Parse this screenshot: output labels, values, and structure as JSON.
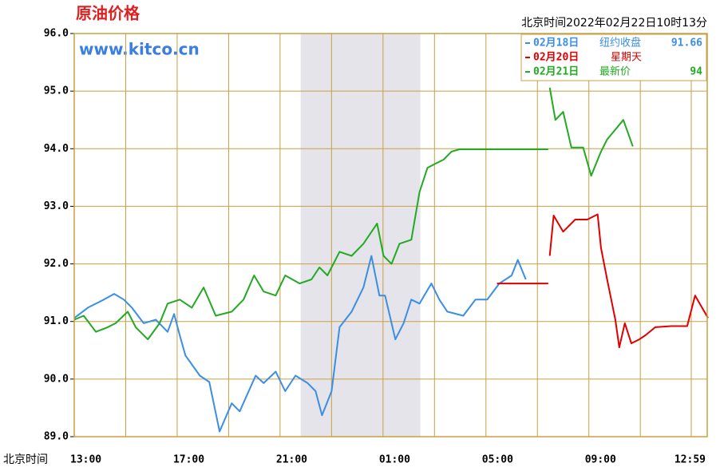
{
  "chart_data": {
    "type": "line",
    "title": "原油价格",
    "watermark": "www.kitco.cn",
    "timestamp": "北京时间2022年02月22日10时13分",
    "xlabel": "北京时间",
    "xlim": [
      0,
      24.6
    ],
    "ylim": [
      89,
      96
    ],
    "xticks": [
      {
        "value": 0,
        "label": "13:00"
      },
      {
        "value": 4,
        "label": "17:00"
      },
      {
        "value": 8,
        "label": "21:00"
      },
      {
        "value": 12,
        "label": "01:00"
      },
      {
        "value": 16,
        "label": "05:00"
      },
      {
        "value": 20,
        "label": "09:00"
      },
      {
        "value": 23.98,
        "label": "12:59"
      }
    ],
    "xminor": [
      2,
      6,
      10,
      14,
      18,
      22
    ],
    "yticks": [
      {
        "value": 89,
        "label": "89.0"
      },
      {
        "value": 90,
        "label": "90.0"
      },
      {
        "value": 91,
        "label": "91.0"
      },
      {
        "value": 92,
        "label": "92.0"
      },
      {
        "value": 93,
        "label": "93.0"
      },
      {
        "value": 94,
        "label": "94.0"
      },
      {
        "value": 95,
        "label": "95.0"
      },
      {
        "value": 96,
        "label": "96.0"
      }
    ],
    "shaded_range": [
      8.8,
      13.45
    ],
    "grid": true,
    "legend": "top-right",
    "series": [
      {
        "name": "02月18日",
        "note": "纽约收盘",
        "note_value": 91.66,
        "color": "#3a8ee6",
        "x": [
          0,
          0.53,
          1.15,
          1.55,
          1.93,
          2.24,
          2.7,
          3.17,
          3.63,
          3.88,
          4.1,
          4.32,
          4.88,
          5.25,
          5.65,
          6.12,
          6.43,
          7.05,
          7.36,
          7.83,
          8.2,
          8.6,
          9.07,
          9.38,
          9.63,
          10.0,
          10.31,
          10.78,
          11.24,
          11.55,
          11.86,
          12.08,
          12.48,
          12.8,
          13.1,
          13.42,
          13.88,
          14.19,
          14.5,
          15.12,
          15.59,
          16.05,
          16.52,
          17.0,
          17.24,
          17.55
        ],
        "values": [
          91.06,
          91.24,
          91.38,
          91.48,
          91.38,
          91.24,
          90.97,
          91.03,
          90.82,
          91.13,
          90.76,
          90.41,
          90.06,
          89.95,
          89.09,
          89.58,
          89.44,
          90.06,
          89.93,
          90.13,
          89.79,
          90.06,
          89.93,
          89.79,
          89.37,
          89.79,
          90.9,
          91.17,
          91.59,
          92.14,
          91.45,
          91.45,
          90.69,
          90.97,
          91.38,
          91.31,
          91.66,
          91.38,
          91.17,
          91.1,
          91.38,
          91.38,
          91.66,
          91.8,
          92.07,
          91.73
        ]
      },
      {
        "name": "02月20日",
        "note": "星期天",
        "color": "#e00000",
        "x": [
          16.43,
          18.42,
          18.43,
          18.48,
          18.63,
          19.0,
          19.47,
          19.94,
          20.34,
          20.47,
          20.71,
          21.03,
          21.18,
          21.4,
          21.65,
          21.96,
          22.2,
          22.58,
          23.2,
          23.82,
          24.13,
          24.63
        ],
        "values": [
          91.66,
          91.66,
          null,
          92.14,
          92.84,
          92.56,
          92.77,
          92.77,
          92.86,
          92.28,
          91.73,
          91.03,
          90.55,
          90.97,
          90.62,
          90.69,
          90.76,
          90.9,
          90.92,
          90.92,
          91.45,
          91.06
        ]
      },
      {
        "name": "02月21日",
        "note": "最新价",
        "note_value": 94.0,
        "color": "#22aa22",
        "x": [
          0,
          0.37,
          0.84,
          1.3,
          1.61,
          2.08,
          2.39,
          2.86,
          3.32,
          3.63,
          4.1,
          4.57,
          5.03,
          5.5,
          6.12,
          6.58,
          6.99,
          7.36,
          7.83,
          8.2,
          8.76,
          9.22,
          9.53,
          9.84,
          10.31,
          10.78,
          11.24,
          11.77,
          12.02,
          12.33,
          12.64,
          13.1,
          13.42,
          13.73,
          14.04,
          14.35,
          14.66,
          14.97,
          18.42,
          18.43,
          18.48,
          18.7,
          19.0,
          19.32,
          19.78,
          20.09,
          20.47,
          20.71,
          21.34,
          21.71
        ],
        "values": [
          91.03,
          91.1,
          90.82,
          90.9,
          90.97,
          91.17,
          90.9,
          90.69,
          90.97,
          91.31,
          91.38,
          91.24,
          91.59,
          91.1,
          91.17,
          91.38,
          91.8,
          91.52,
          91.45,
          91.8,
          91.66,
          91.73,
          91.94,
          91.8,
          92.21,
          92.14,
          92.35,
          92.7,
          92.14,
          92.0,
          92.35,
          92.42,
          93.25,
          93.67,
          93.74,
          93.81,
          93.95,
          93.99,
          93.99,
          null,
          95.06,
          94.5,
          94.64,
          94.02,
          94.02,
          93.53,
          93.95,
          94.16,
          94.5,
          94.04
        ]
      }
    ]
  }
}
